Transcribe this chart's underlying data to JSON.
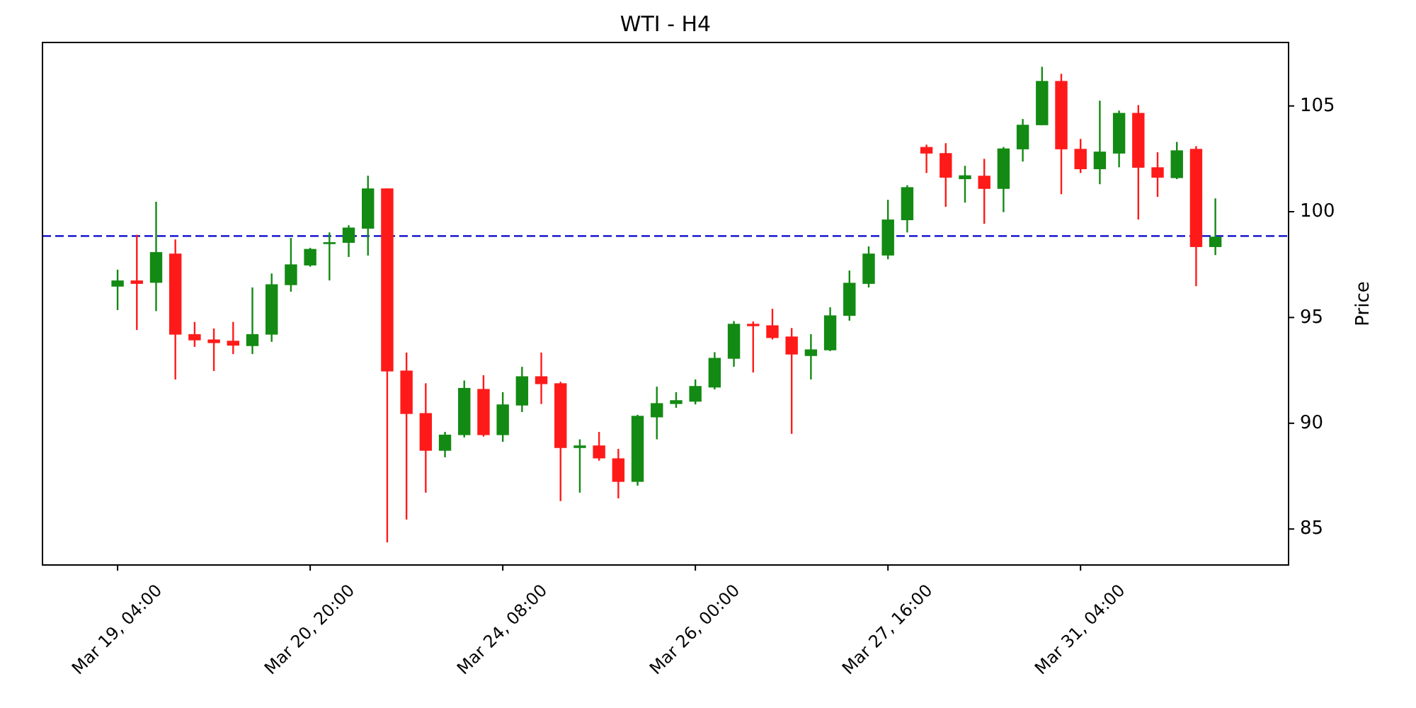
{
  "chart_data": {
    "type": "candlestick",
    "title": "WTI - H4",
    "ylabel": "Price",
    "categories": [
      "Mar 19, 04:00",
      null,
      null,
      null,
      null,
      null,
      null,
      null,
      null,
      null,
      "Mar 20, 20:00",
      null,
      null,
      null,
      null,
      null,
      null,
      null,
      null,
      null,
      "Mar 24, 08:00",
      null,
      null,
      null,
      null,
      null,
      null,
      null,
      null,
      null,
      "Mar 26, 00:00",
      null,
      null,
      null,
      null,
      null,
      null,
      null,
      null,
      null,
      "Mar 27, 16:00",
      null,
      null,
      null,
      null,
      null,
      null,
      null,
      null,
      null,
      "Mar 31, 04:00",
      null,
      null,
      null,
      null,
      null,
      null,
      null
    ],
    "ohlc": [
      [
        96.46,
        97.26,
        95.35,
        96.75
      ],
      [
        96.75,
        98.91,
        94.41,
        96.59
      ],
      [
        96.64,
        100.47,
        95.3,
        98.09
      ],
      [
        98.02,
        98.69,
        92.07,
        94.19
      ],
      [
        94.21,
        94.79,
        93.61,
        93.92
      ],
      [
        93.96,
        94.48,
        92.47,
        93.79
      ],
      [
        93.9,
        94.79,
        93.27,
        93.67
      ],
      [
        93.65,
        96.42,
        93.27,
        94.21
      ],
      [
        94.19,
        97.08,
        93.85,
        96.57
      ],
      [
        96.53,
        98.76,
        96.22,
        97.51
      ],
      [
        97.46,
        98.29,
        97.4,
        98.24
      ],
      [
        98.47,
        99.02,
        96.75,
        98.56
      ],
      [
        98.53,
        99.36,
        97.86,
        99.25
      ],
      [
        99.2,
        101.7,
        97.93,
        101.1
      ],
      [
        101.1,
        101.1,
        84.37,
        92.45
      ],
      [
        92.49,
        93.34,
        85.45,
        90.44
      ],
      [
        90.48,
        91.89,
        86.72,
        88.7
      ],
      [
        88.7,
        89.59,
        88.39,
        89.46
      ],
      [
        89.44,
        92.02,
        89.33,
        91.67
      ],
      [
        91.62,
        92.27,
        89.37,
        89.44
      ],
      [
        89.44,
        91.47,
        89.12,
        90.89
      ],
      [
        90.84,
        92.67,
        90.53,
        92.22
      ],
      [
        92.22,
        93.34,
        90.91,
        91.85
      ],
      [
        91.89,
        91.96,
        86.32,
        88.83
      ],
      [
        88.83,
        89.24,
        86.72,
        88.95
      ],
      [
        88.95,
        89.59,
        88.23,
        88.34
      ],
      [
        88.34,
        88.79,
        86.45,
        87.23
      ],
      [
        87.23,
        90.4,
        87.05,
        90.35
      ],
      [
        90.28,
        91.73,
        89.24,
        90.95
      ],
      [
        90.91,
        91.47,
        90.73,
        91.09
      ],
      [
        91.02,
        92.07,
        90.89,
        91.76
      ],
      [
        91.69,
        93.36,
        91.6,
        93.09
      ],
      [
        93.05,
        94.83,
        92.67,
        94.7
      ],
      [
        94.7,
        94.81,
        92.4,
        94.59
      ],
      [
        94.63,
        95.41,
        93.96,
        94.03
      ],
      [
        94.1,
        94.5,
        89.5,
        93.25
      ],
      [
        93.18,
        94.21,
        92.07,
        93.49
      ],
      [
        93.45,
        95.48,
        93.41,
        95.1
      ],
      [
        95.08,
        97.22,
        94.85,
        96.64
      ],
      [
        96.59,
        98.36,
        96.42,
        98.02
      ],
      [
        97.93,
        100.56,
        97.75,
        99.63
      ],
      [
        99.6,
        101.25,
        99.02,
        101.16
      ],
      [
        103.06,
        103.17,
        101.83,
        102.75
      ],
      [
        102.77,
        103.24,
        100.23,
        101.61
      ],
      [
        101.54,
        102.17,
        100.43,
        101.72
      ],
      [
        101.7,
        102.5,
        99.43,
        101.08
      ],
      [
        101.08,
        103.06,
        99.98,
        102.99
      ],
      [
        102.95,
        104.38,
        102.37,
        104.11
      ],
      [
        104.09,
        106.85,
        104.09,
        106.18
      ],
      [
        106.18,
        106.52,
        100.83,
        102.95
      ],
      [
        102.97,
        103.44,
        101.83,
        102.01
      ],
      [
        102.01,
        105.25,
        101.3,
        102.84
      ],
      [
        102.75,
        104.78,
        102.1,
        104.67
      ],
      [
        104.67,
        105.04,
        99.63,
        102.08
      ],
      [
        102.1,
        102.81,
        100.7,
        101.61
      ],
      [
        101.59,
        103.3,
        101.54,
        102.9
      ],
      [
        102.97,
        103.1,
        96.48,
        98.33
      ],
      [
        98.33,
        100.63,
        97.95,
        98.82
      ]
    ],
    "colors": [
      "#138a13",
      "#ff1a1a",
      "#138a13",
      "#ff1a1a",
      "#ff1a1a",
      "#ff1a1a",
      "#ff1a1a",
      "#138a13",
      "#138a13",
      "#138a13",
      "#138a13",
      "#138a13",
      "#138a13",
      "#138a13",
      "#ff1a1a",
      "#ff1a1a",
      "#ff1a1a",
      "#138a13",
      "#138a13",
      "#ff1a1a",
      "#138a13",
      "#138a13",
      "#ff1a1a",
      "#ff1a1a",
      "#138a13",
      "#ff1a1a",
      "#ff1a1a",
      "#138a13",
      "#138a13",
      "#138a13",
      "#138a13",
      "#138a13",
      "#138a13",
      "#ff1a1a",
      "#ff1a1a",
      "#ff1a1a",
      "#138a13",
      "#138a13",
      "#138a13",
      "#138a13",
      "#138a13",
      "#138a13",
      "#ff1a1a",
      "#ff1a1a",
      "#138a13",
      "#ff1a1a",
      "#138a13",
      "#138a13",
      "#138a13",
      "#ff1a1a",
      "#ff1a1a",
      "#138a13",
      "#138a13",
      "#ff1a1a",
      "#ff1a1a",
      "#138a13",
      "#ff1a1a",
      "#138a13"
    ],
    "ylim": [
      83.3,
      108.0
    ],
    "yticks": [
      85,
      90,
      95,
      100,
      105
    ],
    "ref_lines": [
      {
        "axis": "y",
        "value": 98.85,
        "color": "#0000cc",
        "line_style": "dashed"
      }
    ]
  }
}
